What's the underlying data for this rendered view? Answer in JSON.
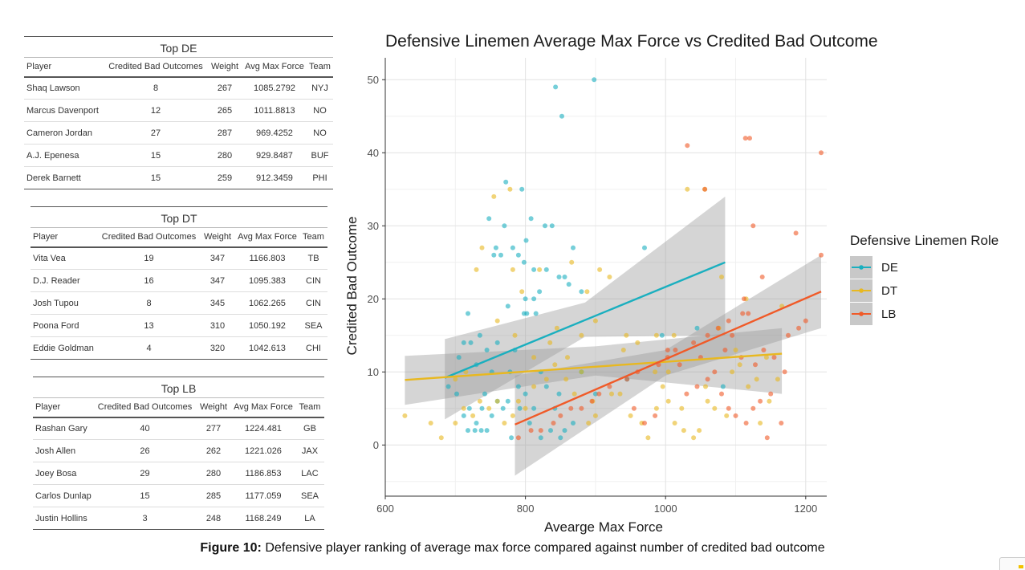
{
  "tables": [
    {
      "title": "Top DE",
      "headers": [
        "Player",
        "Credited Bad Outcomes",
        "Weight",
        "Avg Max Force",
        "Team"
      ],
      "rows": [
        [
          "Shaq Lawson",
          "8",
          "267",
          "1085.2792",
          "NYJ"
        ],
        [
          "Marcus Davenport",
          "12",
          "265",
          "1011.8813",
          "NO"
        ],
        [
          "Cameron Jordan",
          "27",
          "287",
          "969.4252",
          "NO"
        ],
        [
          "A.J. Epenesa",
          "15",
          "280",
          "929.8487",
          "BUF"
        ],
        [
          "Derek Barnett",
          "15",
          "259",
          "912.3459",
          "PHI"
        ]
      ]
    },
    {
      "title": "Top DT",
      "headers": [
        "Player",
        "Credited Bad Outcomes",
        "Weight",
        "Avg Max Force",
        "Team"
      ],
      "rows": [
        [
          "Vita Vea",
          "19",
          "347",
          "1166.803",
          "TB"
        ],
        [
          "D.J. Reader",
          "16",
          "347",
          "1095.383",
          "CIN"
        ],
        [
          "Josh Tupou",
          "8",
          "345",
          "1062.265",
          "CIN"
        ],
        [
          "Poona Ford",
          "13",
          "310",
          "1050.192",
          "SEA"
        ],
        [
          "Eddie Goldman",
          "4",
          "320",
          "1042.613",
          "CHI"
        ]
      ]
    },
    {
      "title": "Top LB",
      "headers": [
        "Player",
        "Credited Bad Outcomes",
        "Weight",
        "Avg Max Force",
        "Team"
      ],
      "rows": [
        [
          "Rashan Gary",
          "40",
          "277",
          "1224.481",
          "GB"
        ],
        [
          "Josh Allen",
          "26",
          "262",
          "1221.026",
          "JAX"
        ],
        [
          "Joey Bosa",
          "29",
          "280",
          "1186.853",
          "LAC"
        ],
        [
          "Carlos Dunlap",
          "15",
          "285",
          "1177.059",
          "SEA"
        ],
        [
          "Justin Hollins",
          "3",
          "248",
          "1168.249",
          "LA"
        ]
      ]
    }
  ],
  "caption": {
    "label": "Figure 10:",
    "text": " Defensive player ranking of average max force compared against number of credited bad outcome"
  },
  "chart_data": {
    "type": "scatter",
    "title": "Defensive Linemen Average Max Force vs Credited Bad Outcome",
    "xlabel": "Avearge Max Force",
    "ylabel": "Credited Bad Outcome",
    "xlim": [
      600,
      1230
    ],
    "ylim": [
      -7,
      53
    ],
    "xticks": [
      600,
      800,
      1000,
      1200
    ],
    "yticks": [
      0,
      10,
      20,
      30,
      40,
      50
    ],
    "grid": true,
    "legend_title": "Defensive Linemen Role",
    "legend_position": "right",
    "series": [
      {
        "name": "DE",
        "color": "#1aafbf",
        "fit": {
          "x": [
            685,
            1085
          ],
          "y": [
            9.2,
            25.0
          ]
        },
        "band": {
          "x": [
            685,
            885,
            1085
          ],
          "upper": [
            14.5,
            19.5,
            34.0
          ],
          "lower": [
            3.5,
            14.8,
            15.0
          ]
        },
        "points": [
          [
            843,
            49
          ],
          [
            898,
            50
          ],
          [
            852,
            45
          ],
          [
            772,
            36
          ],
          [
            795,
            35
          ],
          [
            748,
            31
          ],
          [
            808,
            31
          ],
          [
            770,
            30
          ],
          [
            838,
            30
          ],
          [
            828,
            30
          ],
          [
            801,
            28
          ],
          [
            758,
            27
          ],
          [
            782,
            27
          ],
          [
            868,
            27
          ],
          [
            970,
            27
          ],
          [
            755,
            26
          ],
          [
            765,
            26
          ],
          [
            798,
            25
          ],
          [
            790,
            26
          ],
          [
            812,
            24
          ],
          [
            830,
            24
          ],
          [
            856,
            23
          ],
          [
            848,
            23
          ],
          [
            862,
            22
          ],
          [
            820,
            21
          ],
          [
            880,
            21
          ],
          [
            800,
            20
          ],
          [
            812,
            20
          ],
          [
            775,
            19
          ],
          [
            802,
            18
          ],
          [
            718,
            18
          ],
          [
            798,
            18
          ],
          [
            815,
            18
          ],
          [
            735,
            15
          ],
          [
            760,
            14
          ],
          [
            712,
            14
          ],
          [
            722,
            14
          ],
          [
            745,
            13
          ],
          [
            785,
            13
          ],
          [
            705,
            12
          ],
          [
            730,
            11
          ],
          [
            752,
            10
          ],
          [
            778,
            10
          ],
          [
            822,
            10
          ],
          [
            880,
            10
          ],
          [
            945,
            9
          ],
          [
            790,
            8
          ],
          [
            830,
            8
          ],
          [
            690,
            8
          ],
          [
            702,
            7
          ],
          [
            742,
            7
          ],
          [
            800,
            7
          ],
          [
            848,
            7
          ],
          [
            900,
            7
          ],
          [
            760,
            6
          ],
          [
            775,
            6
          ],
          [
            720,
            5
          ],
          [
            738,
            5
          ],
          [
            768,
            5
          ],
          [
            792,
            5
          ],
          [
            812,
            5
          ],
          [
            842,
            5
          ],
          [
            752,
            4
          ],
          [
            712,
            4
          ],
          [
            730,
            3
          ],
          [
            806,
            3
          ],
          [
            868,
            3
          ],
          [
            718,
            2
          ],
          [
            728,
            2
          ],
          [
            737,
            2
          ],
          [
            745,
            2
          ],
          [
            836,
            2
          ],
          [
            856,
            2
          ],
          [
            780,
            1
          ],
          [
            822,
            1
          ],
          [
            850,
            1
          ],
          [
            1082,
            8
          ],
          [
            995,
            15
          ],
          [
            1045,
            16
          ]
        ]
      },
      {
        "name": "DT",
        "color": "#e8b820",
        "fit": {
          "x": [
            628,
            1166
          ],
          "y": [
            8.9,
            12.5
          ]
        },
        "band": {
          "x": [
            628,
            900,
            1166
          ],
          "upper": [
            12.2,
            13.5,
            16.0
          ],
          "lower": [
            5.5,
            9.5,
            7.0
          ]
        },
        "points": [
          [
            628,
            4
          ],
          [
            665,
            3
          ],
          [
            680,
            1
          ],
          [
            700,
            9
          ],
          [
            715,
            10
          ],
          [
            730,
            24
          ],
          [
            738,
            27
          ],
          [
            755,
            34
          ],
          [
            778,
            35
          ],
          [
            782,
            24
          ],
          [
            795,
            21
          ],
          [
            820,
            24
          ],
          [
            866,
            25
          ],
          [
            888,
            21
          ],
          [
            906,
            24
          ],
          [
            920,
            23
          ],
          [
            944,
            15
          ],
          [
            987,
            15
          ],
          [
            1012,
            15
          ],
          [
            1031,
            35
          ],
          [
            1056,
            35
          ],
          [
            1076,
            16
          ],
          [
            1080,
            23
          ],
          [
            1100,
            13
          ],
          [
            1115,
            20
          ],
          [
            1166,
            19
          ],
          [
            1144,
            12
          ],
          [
            1130,
            9
          ],
          [
            1057,
            8
          ],
          [
            1023,
            5
          ],
          [
            1004,
            6
          ],
          [
            985,
            10
          ],
          [
            960,
            14
          ],
          [
            940,
            13
          ],
          [
            900,
            17
          ],
          [
            880,
            15
          ],
          [
            860,
            12
          ],
          [
            842,
            11
          ],
          [
            830,
            9
          ],
          [
            812,
            8
          ],
          [
            800,
            5
          ],
          [
            790,
            6
          ],
          [
            782,
            4
          ],
          [
            770,
            3
          ],
          [
            760,
            6
          ],
          [
            748,
            5
          ],
          [
            735,
            6
          ],
          [
            725,
            4
          ],
          [
            712,
            5
          ],
          [
            700,
            3
          ],
          [
            760,
            17
          ],
          [
            785,
            15
          ],
          [
            812,
            12
          ],
          [
            835,
            14
          ],
          [
            845,
            16
          ],
          [
            858,
            9
          ],
          [
            870,
            7
          ],
          [
            880,
            10
          ],
          [
            890,
            3
          ],
          [
            896,
            6
          ],
          [
            900,
            4
          ],
          [
            923,
            7
          ],
          [
            935,
            7
          ],
          [
            950,
            4
          ],
          [
            966,
            3
          ],
          [
            975,
            1
          ],
          [
            987,
            5
          ],
          [
            996,
            8
          ],
          [
            1004,
            10
          ],
          [
            1013,
            3
          ],
          [
            1026,
            2
          ],
          [
            1040,
            1
          ],
          [
            1048,
            2
          ],
          [
            1060,
            6
          ],
          [
            1070,
            5
          ],
          [
            1087,
            4
          ],
          [
            1095,
            10
          ],
          [
            1106,
            11
          ],
          [
            1118,
            8
          ],
          [
            1135,
            3
          ],
          [
            1148,
            6
          ],
          [
            1160,
            9
          ]
        ]
      },
      {
        "name": "LB",
        "color": "#f05a28",
        "fit": {
          "x": [
            785,
            1222
          ],
          "y": [
            2.8,
            21.0
          ]
        },
        "band": {
          "x": [
            785,
            1000,
            1222
          ],
          "upper": [
            9.5,
            13.0,
            26.0
          ],
          "lower": [
            -4.2,
            9.5,
            16.0
          ]
        },
        "points": [
          [
            1031,
            41
          ],
          [
            1056,
            35
          ],
          [
            1114,
            42
          ],
          [
            1120,
            42
          ],
          [
            1222,
            40
          ],
          [
            1125,
            30
          ],
          [
            1186,
            29
          ],
          [
            1222,
            26
          ],
          [
            1138,
            23
          ],
          [
            1112,
            20
          ],
          [
            1110,
            18
          ],
          [
            1118,
            18
          ],
          [
            1090,
            17
          ],
          [
            1075,
            16
          ],
          [
            1060,
            15
          ],
          [
            1040,
            14
          ],
          [
            1014,
            13
          ],
          [
            1003,
            12
          ],
          [
            990,
            11
          ],
          [
            960,
            10
          ],
          [
            945,
            9
          ],
          [
            920,
            8
          ],
          [
            905,
            7
          ],
          [
            895,
            6
          ],
          [
            880,
            5
          ],
          [
            865,
            5
          ],
          [
            850,
            4
          ],
          [
            840,
            3
          ],
          [
            822,
            2
          ],
          [
            808,
            2
          ],
          [
            790,
            1
          ],
          [
            1030,
            7
          ],
          [
            1045,
            8
          ],
          [
            1060,
            9
          ],
          [
            1080,
            7
          ],
          [
            1090,
            5
          ],
          [
            1100,
            4
          ],
          [
            1115,
            3
          ],
          [
            1125,
            5
          ],
          [
            1135,
            6
          ],
          [
            1150,
            7
          ],
          [
            1165,
            3
          ],
          [
            1175,
            15
          ],
          [
            1200,
            17
          ],
          [
            1145,
            1
          ],
          [
            985,
            4
          ],
          [
            970,
            3
          ],
          [
            955,
            5
          ],
          [
            1003,
            13
          ],
          [
            1020,
            11
          ],
          [
            1050,
            12
          ],
          [
            1070,
            10
          ],
          [
            1085,
            13
          ],
          [
            1095,
            15
          ],
          [
            1108,
            12
          ],
          [
            1128,
            11
          ],
          [
            1140,
            13
          ],
          [
            1155,
            12
          ],
          [
            1170,
            10
          ],
          [
            1190,
            16
          ]
        ]
      }
    ]
  }
}
